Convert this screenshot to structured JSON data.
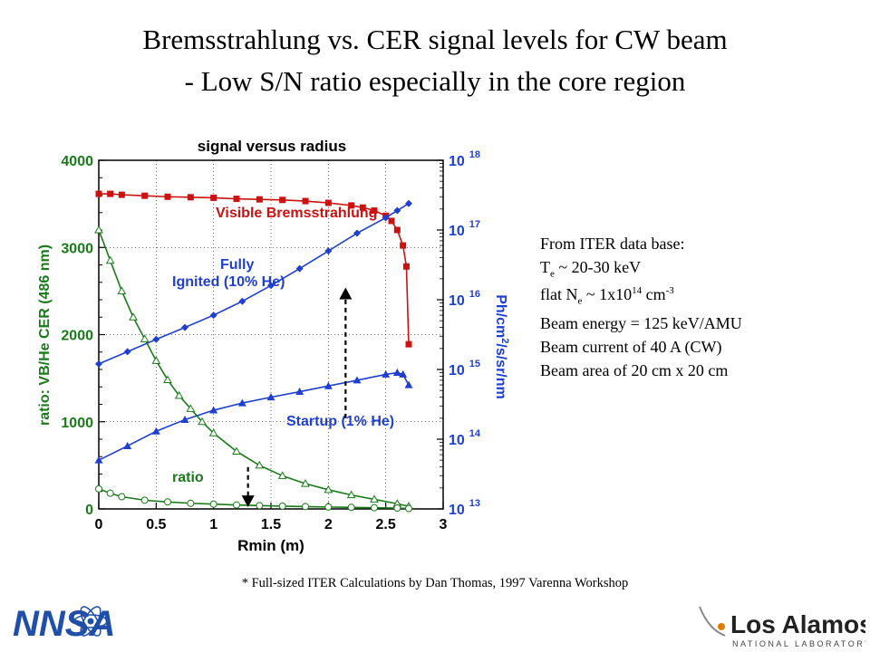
{
  "slide": {
    "title_line1": "Bremsstrahlung vs. CER signal levels for CW beam",
    "title_line2": "- Low S/N ratio especially in the core region",
    "footnote": "* Full-sized ITER Calculations by Dan Thomas, 1997 Varenna Workshop"
  },
  "info": {
    "line1": "From ITER data base:",
    "te_prefix": "T",
    "te_sub": "e",
    "te_value": " ~ 20-30 keV",
    "ne_prefix": "flat N",
    "ne_sub": "e",
    "ne_mid": " ~ 1x10",
    "ne_exp": "14",
    "ne_unit": " cm",
    "ne_unit_exp": "-3",
    "line4": "Beam energy = 125 keV/AMU",
    "line5": "Beam current of 40 A (CW)",
    "line6": "Beam area of  20 cm x 20 cm"
  },
  "logos": {
    "left": "NNSA",
    "right_main": "Los Alamos",
    "right_sub": "NATIONAL LABORATORY"
  },
  "colors": {
    "brems": "#cc1111",
    "fully": "#1f3fcf",
    "startup": "#1f3fcf",
    "ratio": "#1a7a1a",
    "nnsa": "#1f4fa8"
  },
  "chart_data": {
    "type": "line",
    "title": "signal versus radius",
    "xlabel": "Rmin (m)",
    "ylabel_left": "ratio: VB/He CER (486 nm)",
    "ylabel_right_main": "Ph/cm",
    "ylabel_right_exp": "2",
    "ylabel_right_tail": "/s/sr/nm",
    "xlim": [
      0,
      3
    ],
    "ylim_left": [
      0,
      4000
    ],
    "ylim_right": [
      10000000000000.0,
      1e+18
    ],
    "right_scale": "log",
    "x_ticks": [
      "0",
      "0.5",
      "1",
      "1.5",
      "2",
      "2.5",
      "3"
    ],
    "y_left_ticks": [
      "0",
      "1000",
      "2000",
      "3000",
      "4000"
    ],
    "y_right_ticks": [
      "13",
      "14",
      "15",
      "16",
      "17",
      "18"
    ],
    "y_right_tick_base": "10",
    "grid": true,
    "series": [
      {
        "name": "Visible Bremsstrahlung",
        "axis": "right",
        "x": [
          0,
          0.1,
          0.2,
          0.4,
          0.6,
          0.8,
          1.0,
          1.2,
          1.4,
          1.6,
          1.8,
          2.0,
          2.2,
          2.3,
          2.4,
          2.5,
          2.55,
          2.6,
          2.65,
          2.68,
          2.7
        ],
        "y": [
          3.3e+17,
          3.3e+17,
          3.2e+17,
          3.1e+17,
          3e+17,
          2.95e+17,
          2.9e+17,
          2.8e+17,
          2.75e+17,
          2.7e+17,
          2.6e+17,
          2.45e+17,
          2.25e+17,
          2.1e+17,
          1.9e+17,
          1.6e+17,
          1.35e+17,
          1e+17,
          6e+16,
          3e+16,
          2300000000000000.0
        ]
      },
      {
        "name": "Fully Ignited (10% He)",
        "axis": "right",
        "x": [
          0,
          0.25,
          0.5,
          0.75,
          1.0,
          1.25,
          1.5,
          1.75,
          2.0,
          2.25,
          2.5,
          2.6,
          2.7
        ],
        "y": [
          1200000000000000.0,
          1800000000000000.0,
          2700000000000000.0,
          4000000000000000.0,
          6000000000000000.0,
          9500000000000000.0,
          1.6e+16,
          2.8e+16,
          5e+16,
          9e+16,
          1.5e+17,
          1.9e+17,
          2.4e+17
        ]
      },
      {
        "name": "Startup  (1% He)",
        "axis": "right",
        "x": [
          0,
          0.25,
          0.5,
          0.75,
          1.0,
          1.25,
          1.5,
          1.75,
          2.0,
          2.25,
          2.5,
          2.6,
          2.65,
          2.7
        ],
        "y": [
          50000000000000.0,
          80000000000000.0,
          130000000000000.0,
          190000000000000.0,
          260000000000000.0,
          330000000000000.0,
          400000000000000.0,
          480000000000000.0,
          580000000000000.0,
          700000000000000.0,
          850000000000000.0,
          900000000000000.0,
          850000000000000.0,
          600000000000000.0
        ]
      },
      {
        "name": "ratio",
        "axis": "left",
        "kind": "triangle-open",
        "x": [
          0,
          0.1,
          0.2,
          0.3,
          0.4,
          0.5,
          0.6,
          0.7,
          0.8,
          0.9,
          1.0,
          1.2,
          1.4,
          1.6,
          1.8,
          2.0,
          2.2,
          2.4,
          2.6,
          2.7
        ],
        "y": [
          3200,
          2850,
          2500,
          2200,
          1950,
          1700,
          1480,
          1300,
          1150,
          1000,
          870,
          660,
          500,
          380,
          290,
          220,
          160,
          110,
          60,
          30
        ]
      },
      {
        "name": "ratio",
        "axis": "left",
        "kind": "circle-open",
        "x": [
          0,
          0.1,
          0.2,
          0.4,
          0.6,
          0.8,
          1.0,
          1.2,
          1.4,
          1.6,
          1.8,
          2.0,
          2.2,
          2.4,
          2.6,
          2.7
        ],
        "y": [
          230,
          180,
          140,
          100,
          80,
          65,
          55,
          45,
          38,
          32,
          27,
          22,
          18,
          14,
          10,
          5
        ]
      }
    ],
    "annotations": [
      {
        "text": "Visible Bremsstrahlung",
        "color": "#cc1111"
      },
      {
        "text": "Fully",
        "color": "#1f3fcf"
      },
      {
        "text": "Ignited (10% He)",
        "color": "#1f3fcf"
      },
      {
        "text": "Startup  (1% He)",
        "color": "#1f3fcf"
      },
      {
        "text": "ratio",
        "color": "#1a7a1a"
      }
    ],
    "arrows": [
      {
        "from_x": 2.15,
        "from_y_right": 200000000000000.0,
        "to_x": 2.15,
        "to_y_right": 1.5e+16,
        "direction": "up"
      },
      {
        "from_x": 1.3,
        "from_y_left": 480,
        "to_x": 1.3,
        "to_y_left": 20,
        "direction": "down"
      }
    ]
  }
}
